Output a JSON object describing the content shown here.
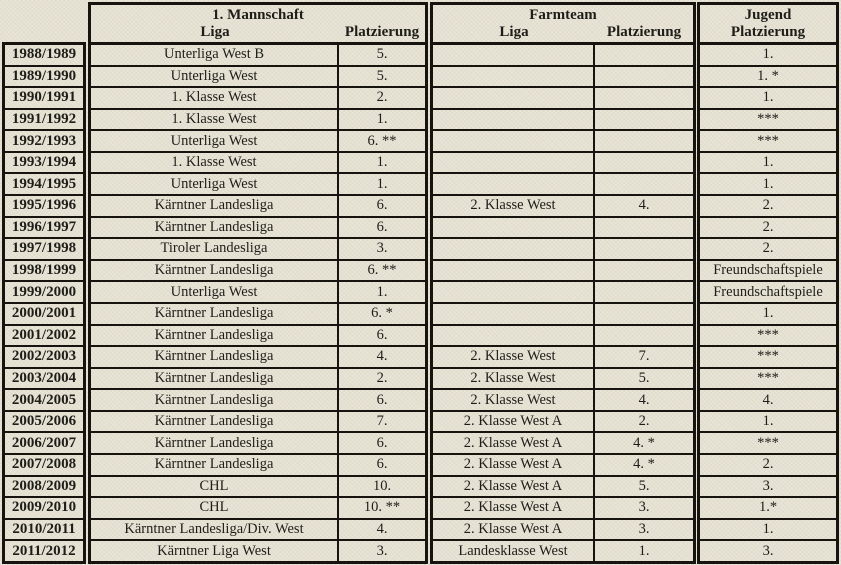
{
  "colors": {
    "background": "#e8e4d6",
    "border": "#17140f",
    "text": "#1f1d19"
  },
  "table": {
    "groups": [
      {
        "id": "mannschaft",
        "title": "1. Mannschaft",
        "columns": [
          "Liga",
          "Platzierung"
        ]
      },
      {
        "id": "farmteam",
        "title": "Farmteam",
        "columns": [
          "Liga",
          "Platzierung"
        ]
      },
      {
        "id": "jugend",
        "title": "Jugend",
        "columns": [
          "Platzierung"
        ]
      }
    ],
    "rows": [
      {
        "season": "1988/1989",
        "m_liga": "Unterliga West B",
        "m_platz": "5.",
        "f_liga": "",
        "f_platz": "",
        "j_platz": "1."
      },
      {
        "season": "1989/1990",
        "m_liga": "Unterliga West",
        "m_platz": "5.",
        "f_liga": "",
        "f_platz": "",
        "j_platz": "1. *"
      },
      {
        "season": "1990/1991",
        "m_liga": "1. Klasse West",
        "m_platz": "2.",
        "f_liga": "",
        "f_platz": "",
        "j_platz": "1."
      },
      {
        "season": "1991/1992",
        "m_liga": "1. Klasse West",
        "m_platz": "1.",
        "f_liga": "",
        "f_platz": "",
        "j_platz": "***"
      },
      {
        "season": "1992/1993",
        "m_liga": "Unterliga West",
        "m_platz": "6. **",
        "f_liga": "",
        "f_platz": "",
        "j_platz": "***"
      },
      {
        "season": "1993/1994",
        "m_liga": "1. Klasse West",
        "m_platz": "1.",
        "f_liga": "",
        "f_platz": "",
        "j_platz": "1."
      },
      {
        "season": "1994/1995",
        "m_liga": "Unterliga West",
        "m_platz": "1.",
        "f_liga": "",
        "f_platz": "",
        "j_platz": "1."
      },
      {
        "season": "1995/1996",
        "m_liga": "Kärntner Landesliga",
        "m_platz": "6.",
        "f_liga": "2. Klasse West",
        "f_platz": "4.",
        "j_platz": "2."
      },
      {
        "season": "1996/1997",
        "m_liga": "Kärntner Landesliga",
        "m_platz": "6.",
        "f_liga": "",
        "f_platz": "",
        "j_platz": "2."
      },
      {
        "season": "1997/1998",
        "m_liga": "Tiroler Landesliga",
        "m_platz": "3.",
        "f_liga": "",
        "f_platz": "",
        "j_platz": "2."
      },
      {
        "season": "1998/1999",
        "m_liga": "Kärntner Landesliga",
        "m_platz": "6. **",
        "f_liga": "",
        "f_platz": "",
        "j_platz": "Freundschaftspiele"
      },
      {
        "season": "1999/2000",
        "m_liga": "Unterliga West",
        "m_platz": "1.",
        "f_liga": "",
        "f_platz": "",
        "j_platz": "Freundschaftspiele"
      },
      {
        "season": "2000/2001",
        "m_liga": "Kärntner Landesliga",
        "m_platz": "6. *",
        "f_liga": "",
        "f_platz": "",
        "j_platz": "1."
      },
      {
        "season": "2001/2002",
        "m_liga": "Kärntner Landesliga",
        "m_platz": "6.",
        "f_liga": "",
        "f_platz": "",
        "j_platz": "***"
      },
      {
        "season": "2002/2003",
        "m_liga": "Kärntner Landesliga",
        "m_platz": "4.",
        "f_liga": "2. Klasse West",
        "f_platz": "7.",
        "j_platz": "***"
      },
      {
        "season": "2003/2004",
        "m_liga": "Kärntner Landesliga",
        "m_platz": "2.",
        "f_liga": "2. Klasse West",
        "f_platz": "5.",
        "j_platz": "***"
      },
      {
        "season": "2004/2005",
        "m_liga": "Kärntner Landesliga",
        "m_platz": "6.",
        "f_liga": "2. Klasse West",
        "f_platz": "4.",
        "j_platz": "4."
      },
      {
        "season": "2005/2006",
        "m_liga": "Kärntner Landesliga",
        "m_platz": "7.",
        "f_liga": "2. Klasse West A",
        "f_platz": "2.",
        "j_platz": "1."
      },
      {
        "season": "2006/2007",
        "m_liga": "Kärntner Landesliga",
        "m_platz": "6.",
        "f_liga": "2. Klasse West A",
        "f_platz": "4. *",
        "j_platz": "***"
      },
      {
        "season": "2007/2008",
        "m_liga": "Kärntner Landesliga",
        "m_platz": "6.",
        "f_liga": "2. Klasse West A",
        "f_platz": "4. *",
        "j_platz": "2."
      },
      {
        "season": "2008/2009",
        "m_liga": "CHL",
        "m_platz": "10.",
        "f_liga": "2. Klasse West A",
        "f_platz": "5.",
        "j_platz": "3."
      },
      {
        "season": "2009/2010",
        "m_liga": "CHL",
        "m_platz": "10. **",
        "f_liga": "2. Klasse West A",
        "f_platz": "3.",
        "j_platz": "1.*"
      },
      {
        "season": "2010/2011",
        "m_liga": "Kärntner Landesliga/Div. West",
        "m_platz": "4.",
        "f_liga": "2. Klasse West A",
        "f_platz": "3.",
        "j_platz": "1."
      },
      {
        "season": "2011/2012",
        "m_liga": "Kärntner Liga West",
        "m_platz": "3.",
        "f_liga": "Landesklasse West",
        "f_platz": "1.",
        "j_platz": "3."
      }
    ]
  }
}
